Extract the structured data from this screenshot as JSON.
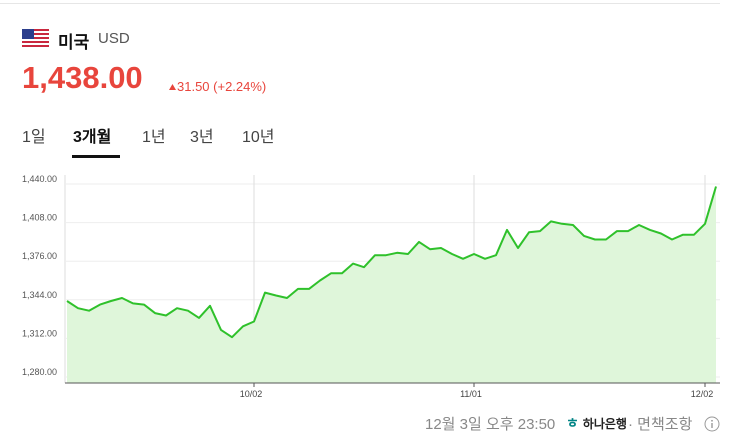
{
  "header": {
    "country": "미국",
    "currency": "USD",
    "price": "1,438.00",
    "change": "31.50 (+2.24%)"
  },
  "tabs": [
    "1일",
    "3개월",
    "1년",
    "3년",
    "10년"
  ],
  "chart_data": {
    "type": "line",
    "color": "#2fc12b",
    "area_color": "#dff6da",
    "categories": [
      null,
      null,
      null,
      null,
      null,
      null,
      null,
      null,
      null,
      null,
      null,
      null,
      null,
      null,
      null,
      null,
      null,
      "10/02",
      null,
      null,
      null,
      null,
      null,
      null,
      null,
      null,
      null,
      null,
      null,
      null,
      null,
      null,
      null,
      null,
      null,
      null,
      null,
      "11/01",
      null,
      null,
      null,
      null,
      null,
      null,
      null,
      null,
      null,
      null,
      null,
      null,
      null,
      null,
      null,
      null,
      null,
      null,
      null,
      null,
      "12/02",
      null
    ],
    "values": [
      1343,
      1337,
      1335,
      1340,
      1343,
      1345.5,
      1341,
      1340,
      1333,
      1331,
      1337,
      1335,
      1329,
      1339,
      1319,
      1313,
      1322,
      1326,
      1350,
      1347.6,
      1345.5,
      1353,
      1353,
      1360,
      1366,
      1366,
      1374,
      1371,
      1381,
      1381,
      1383,
      1382,
      1392,
      1386,
      1387,
      1382,
      1378,
      1382,
      1378,
      1381,
      1402,
      1387,
      1400,
      1401,
      1409,
      1407,
      1406,
      1397,
      1394,
      1394,
      1401,
      1401,
      1406,
      1402,
      1399,
      1394,
      1398,
      1398,
      1407,
      1438
    ],
    "ylim": [
      1275,
      1447.5
    ],
    "yticks": [
      {
        "value": 1280,
        "label": "1,280.00"
      },
      {
        "value": 1312,
        "label": "1,312.00"
      },
      {
        "value": 1344,
        "label": "1,344.00"
      },
      {
        "value": 1376,
        "label": "1,376.00"
      },
      {
        "value": 1408,
        "label": "1,408.00"
      },
      {
        "value": 1440,
        "label": "1,440.00"
      }
    ],
    "grid": true
  },
  "footer": {
    "time": "12월 3일 오후 23:50",
    "bank": "하나은행",
    "disclaimer": "면책조항"
  }
}
